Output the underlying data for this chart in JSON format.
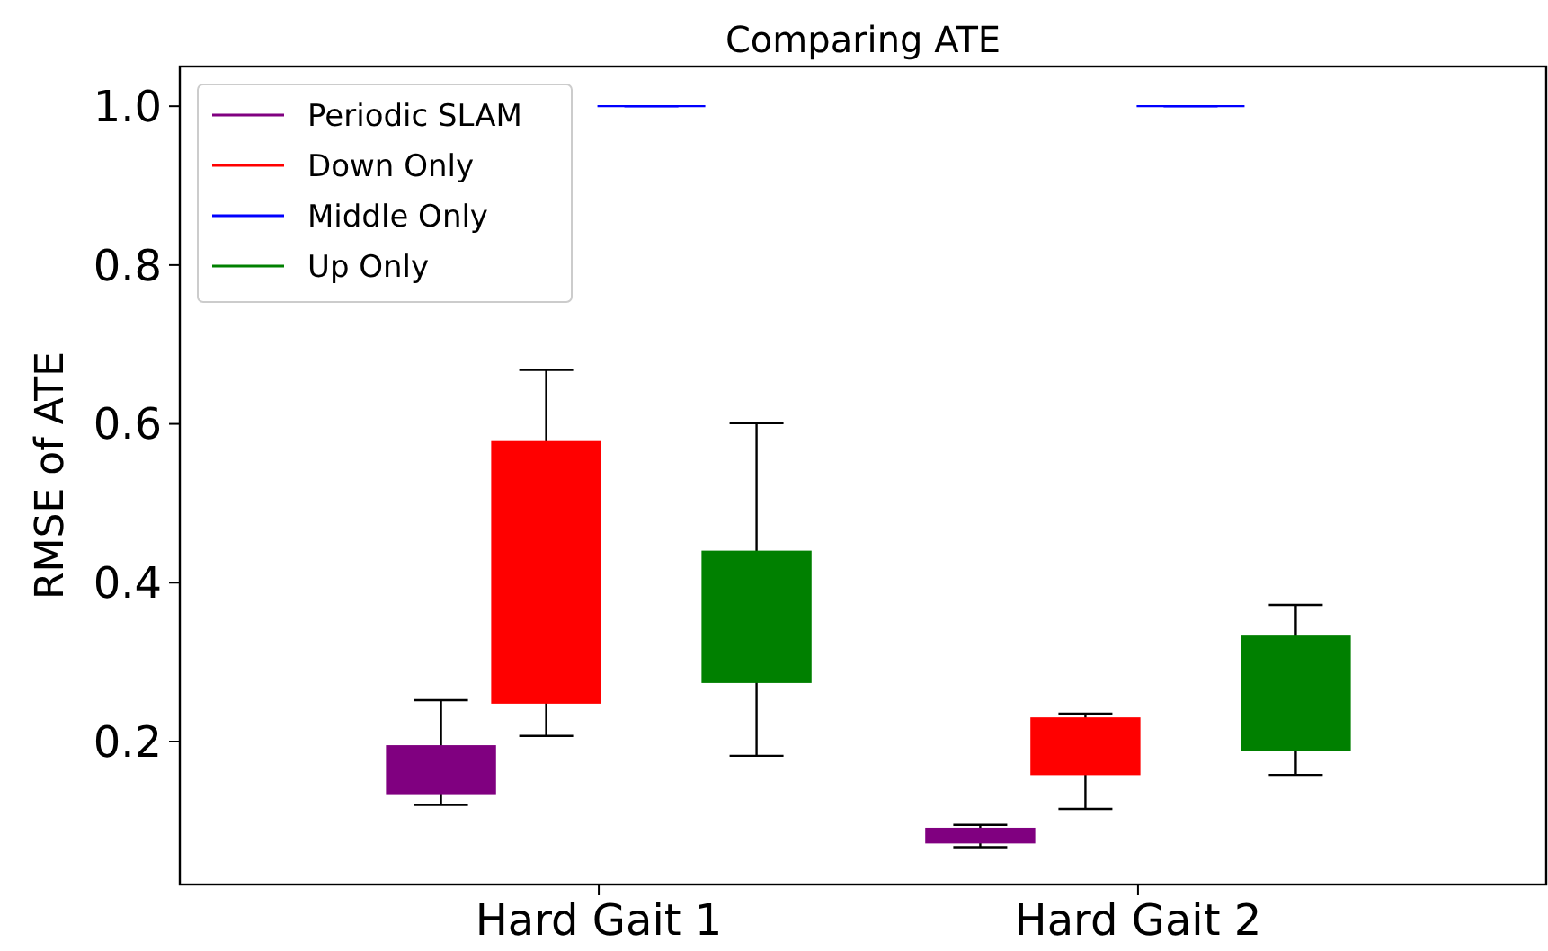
{
  "chart_data": {
    "type": "box",
    "title": "Comparing ATE",
    "ylabel": "RMSE of ATE",
    "categories": [
      "Hard Gait 1",
      "Hard Gait 2"
    ],
    "ylim": [
      0.02,
      1.05
    ],
    "yticks": [
      0.2,
      0.4,
      0.6,
      0.8,
      {
        "value": 1,
        "label": "1.0"
      }
    ],
    "grid": false,
    "legend": "top left",
    "series": [
      {
        "name": "Periodic SLAM",
        "color": "#800080",
        "boxes": [
          {
            "low": 0.12,
            "q1": 0.135,
            "median": 0.171,
            "q3": 0.194,
            "high": 0.252
          },
          {
            "low": 0.067,
            "q1": 0.073,
            "median": 0.082,
            "q3": 0.09,
            "high": 0.095
          }
        ]
      },
      {
        "name": "Down Only",
        "color": "#ff0000",
        "boxes": [
          {
            "low": 0.207,
            "q1": 0.249,
            "median": 0.327,
            "q3": 0.577,
            "high": 0.668
          },
          {
            "low": 0.115,
            "q1": 0.159,
            "median": 0.19,
            "q3": 0.229,
            "high": 0.235
          }
        ]
      },
      {
        "name": "Middle Only",
        "color": "#0000ff",
        "boxes": [
          {
            "low": 1.0,
            "q1": 1.0,
            "median": 1.0,
            "q3": 1.0,
            "high": 1.0
          },
          {
            "low": 1.0,
            "q1": 1.0,
            "median": 1.0,
            "q3": 1.0,
            "high": 1.0
          }
        ]
      },
      {
        "name": "Up Only",
        "color": "#008000",
        "boxes": [
          {
            "low": 0.182,
            "q1": 0.275,
            "median": 0.338,
            "q3": 0.439,
            "high": 0.601
          },
          {
            "low": 0.158,
            "q1": 0.189,
            "median": 0.278,
            "q3": 0.332,
            "high": 0.372
          }
        ]
      }
    ]
  }
}
